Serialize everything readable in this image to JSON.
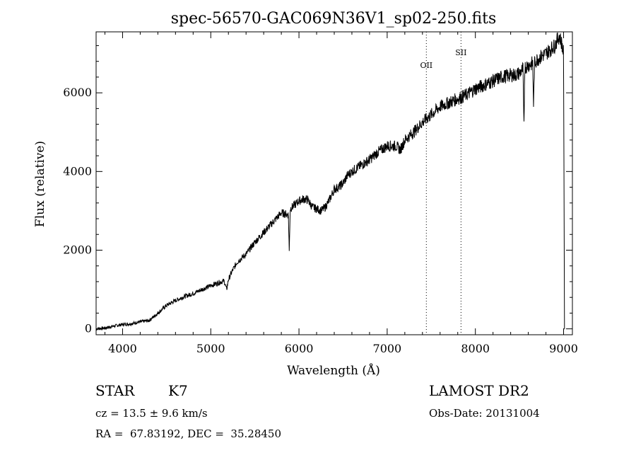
{
  "chart_data": {
    "type": "line",
    "title": "spec-56570-GAC069N36V1_sp02-250.fits",
    "xlabel": "Wavelength (Å)",
    "ylabel": "Flux (relative)",
    "xlim": [
      3700,
      9100
    ],
    "ylim": [
      -150,
      7550
    ],
    "x_ticks": [
      4000,
      5000,
      6000,
      7000,
      8000,
      9000
    ],
    "y_ticks": [
      0,
      2000,
      4000,
      6000
    ],
    "grid": false,
    "series": [
      {
        "x": [
          3700,
          3800,
          3900,
          4000,
          4100,
          4200,
          4300,
          4400,
          4500,
          4600,
          4700,
          4800,
          4900,
          5000,
          5100,
          5150,
          5180,
          5200,
          5250,
          5300,
          5400,
          5500,
          5600,
          5700,
          5800,
          5880,
          5890,
          5900,
          5950,
          6000,
          6050,
          6100,
          6150,
          6200,
          6250,
          6300,
          6350,
          6400,
          6450,
          6500,
          6550,
          6600,
          6700,
          6800,
          6900,
          7000,
          7100,
          7150,
          7200,
          7300,
          7400,
          7500,
          7600,
          7700,
          7800,
          7900,
          8000,
          8100,
          8200,
          8300,
          8400,
          8450,
          8500,
          8540,
          8550,
          8560,
          8600,
          8650,
          8660,
          8670,
          8700,
          8800,
          8900,
          8950,
          8980,
          9000,
          9010
        ],
        "y": [
          0,
          20,
          70,
          110,
          130,
          180,
          210,
          400,
          600,
          720,
          820,
          900,
          1000,
          1100,
          1180,
          1220,
          1000,
          1250,
          1500,
          1700,
          1900,
          2200,
          2450,
          2700,
          2950,
          2900,
          1950,
          3050,
          3150,
          3250,
          3300,
          3280,
          3100,
          3050,
          3000,
          3100,
          3300,
          3550,
          3600,
          3700,
          3900,
          4000,
          4150,
          4300,
          4500,
          4650,
          4650,
          4550,
          4800,
          5000,
          5250,
          5450,
          5650,
          5750,
          5850,
          5950,
          6100,
          6200,
          6300,
          6400,
          6450,
          6450,
          6500,
          6600,
          5050,
          6650,
          6700,
          6750,
          5600,
          6750,
          6850,
          7000,
          7200,
          7450,
          7250,
          7000,
          20
        ]
      }
    ],
    "lines": [
      {
        "label": "OII",
        "x": 7444
      },
      {
        "label": "SII",
        "x": 7837
      }
    ]
  },
  "footer": {
    "object_class": "STAR",
    "subclass": "K7",
    "survey": "LAMOST DR2",
    "redshift": "cz = 13.5 ± 9.6 km/s",
    "obs_date": "Obs-Date: 20131004",
    "coords": "RA =  67.83192, DEC =  35.28450"
  }
}
